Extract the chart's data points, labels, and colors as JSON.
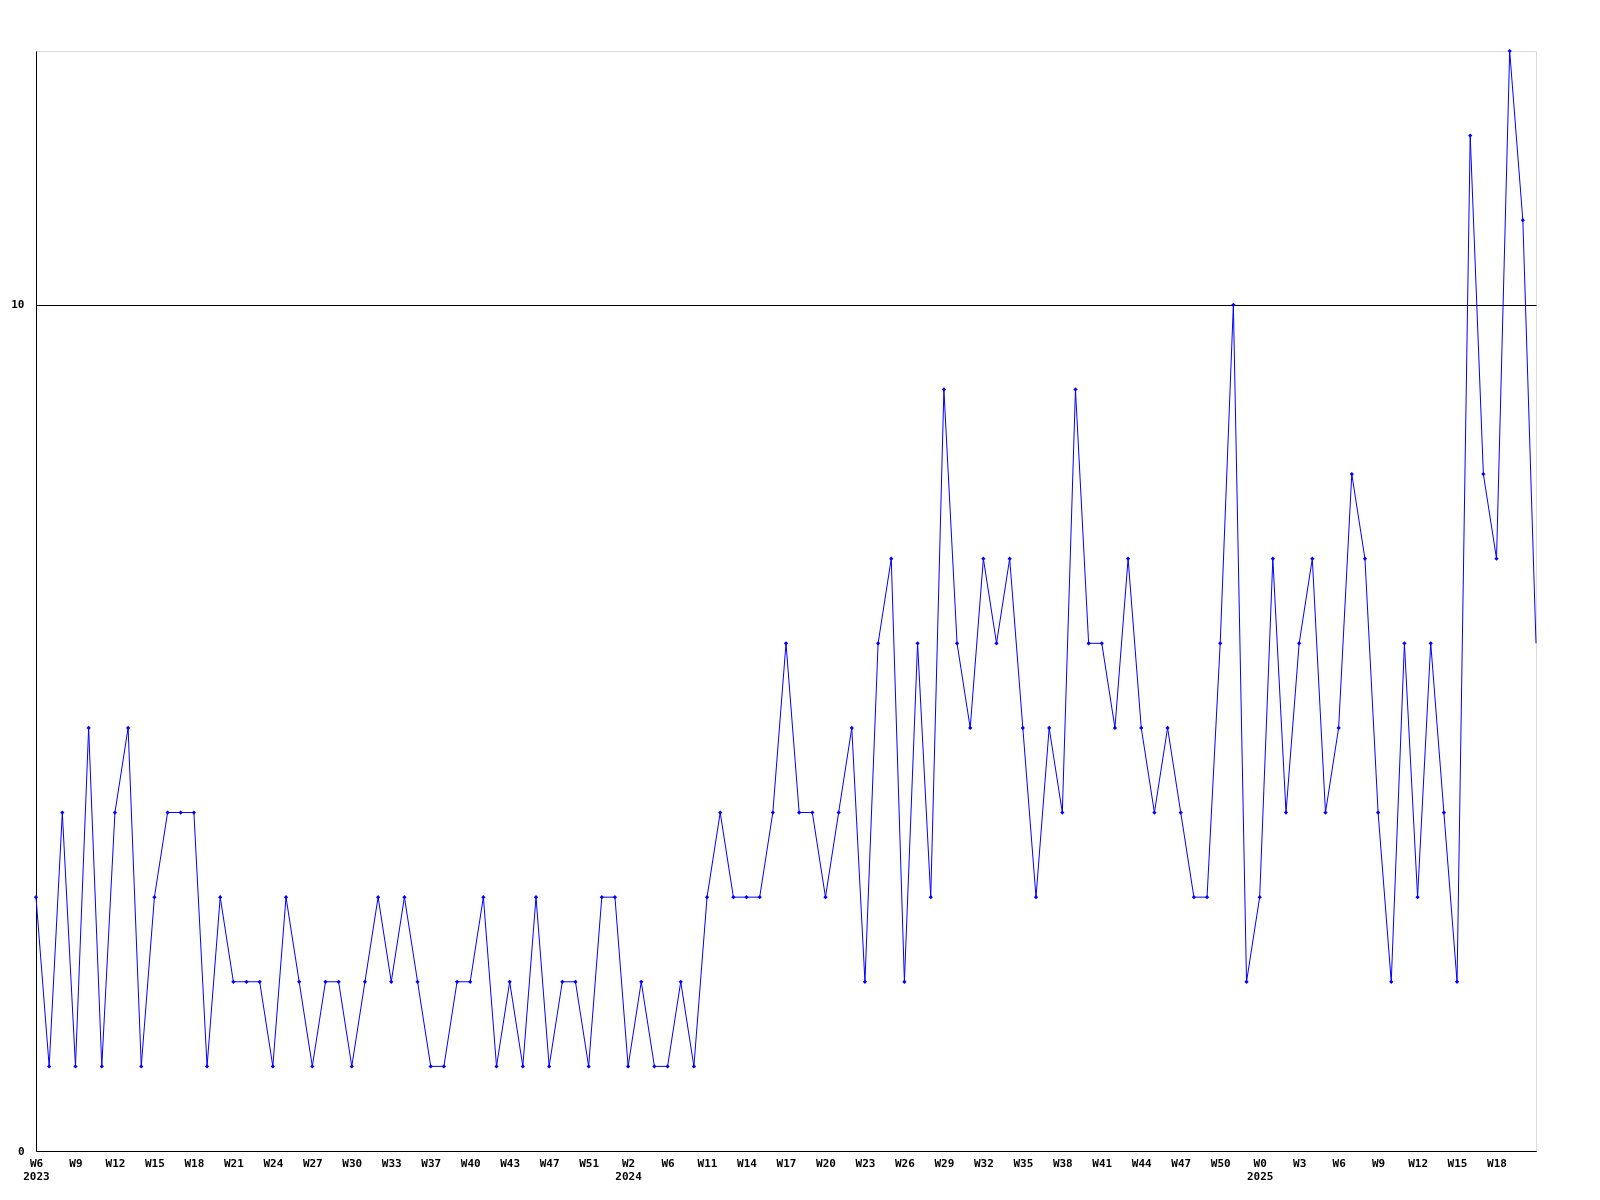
{
  "chart_data": {
    "type": "line",
    "categories": [
      "W6\n2023",
      null,
      null,
      "W9",
      null,
      null,
      "W12",
      null,
      null,
      "W15",
      null,
      null,
      "W18",
      null,
      null,
      "W21",
      null,
      null,
      "W24",
      null,
      null,
      "W27",
      null,
      null,
      "W30",
      null,
      null,
      "W33",
      null,
      null,
      "W37",
      null,
      null,
      "W40",
      null,
      null,
      "W43",
      null,
      null,
      "W47",
      null,
      null,
      "W51",
      null,
      null,
      "W2\n2024",
      null,
      null,
      "W6",
      null,
      null,
      "W11",
      null,
      null,
      "W14",
      null,
      null,
      "W17",
      null,
      null,
      "W20",
      null,
      null,
      "W23",
      null,
      null,
      "W26",
      null,
      null,
      "W29",
      null,
      null,
      "W32",
      null,
      null,
      "W35",
      null,
      null,
      "W38",
      null,
      null,
      "W41",
      null,
      null,
      "W44",
      null,
      null,
      "W47",
      null,
      null,
      "W50",
      null,
      null,
      "W0\n2025",
      null,
      null,
      "W3",
      null,
      null,
      "W6",
      null,
      null,
      "W9",
      null,
      null,
      "W12",
      null,
      null,
      "W15",
      null,
      null,
      "W18",
      null,
      null,
      null
    ],
    "series": [
      {
        "color": "#0000ff",
        "values": [
          3,
          1,
          4,
          1,
          5,
          1,
          4,
          5,
          1,
          3,
          4,
          4,
          4,
          1,
          3,
          2,
          2,
          2,
          1,
          3,
          2,
          1,
          2,
          2,
          1,
          2,
          3,
          2,
          3,
          2,
          1,
          1,
          2,
          2,
          3,
          1,
          2,
          1,
          3,
          1,
          2,
          2,
          1,
          3,
          3,
          1,
          2,
          1,
          1,
          2,
          1,
          3,
          4,
          3,
          3,
          3,
          4,
          6,
          4,
          4,
          3,
          4,
          5,
          2,
          6,
          7,
          2,
          6,
          3,
          9,
          6,
          5,
          7,
          6,
          7,
          5,
          3,
          5,
          4,
          9,
          6,
          6,
          5,
          7,
          5,
          4,
          5,
          4,
          3,
          3,
          6,
          10,
          2,
          3,
          7,
          4,
          6,
          7,
          4,
          5,
          8,
          7,
          4,
          2,
          6,
          3,
          6,
          4,
          2,
          12,
          8,
          7,
          13,
          11,
          6
        ]
      }
    ],
    "ylim": [
      0,
      13
    ],
    "yticks": [
      0,
      10
    ],
    "grid": "y",
    "marker": "diamond",
    "line_style": "solid"
  }
}
